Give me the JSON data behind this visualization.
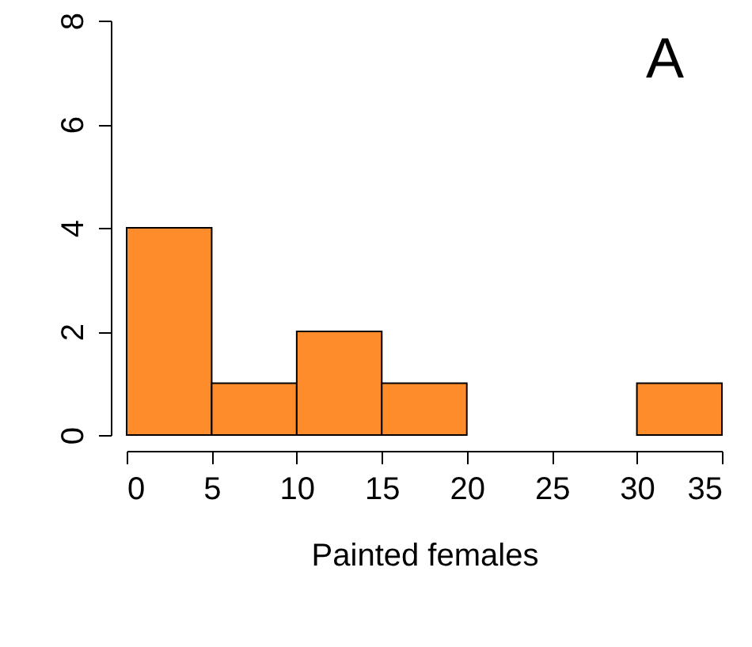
{
  "chart_data": {
    "type": "histogram",
    "xlabel": "Painted females",
    "bins": [
      0,
      5,
      10,
      15,
      20,
      25,
      30,
      35
    ],
    "values": [
      4,
      1,
      2,
      1,
      0,
      0,
      1
    ],
    "color": "#ff8c2a",
    "xlim": [
      0,
      35
    ],
    "xticks": [
      0,
      5,
      10,
      15,
      20,
      25,
      30,
      35
    ],
    "ylim": [
      0,
      8
    ],
    "yticks": [
      0,
      2,
      4,
      6,
      8
    ],
    "grid": false,
    "annotations": [
      "A"
    ]
  }
}
